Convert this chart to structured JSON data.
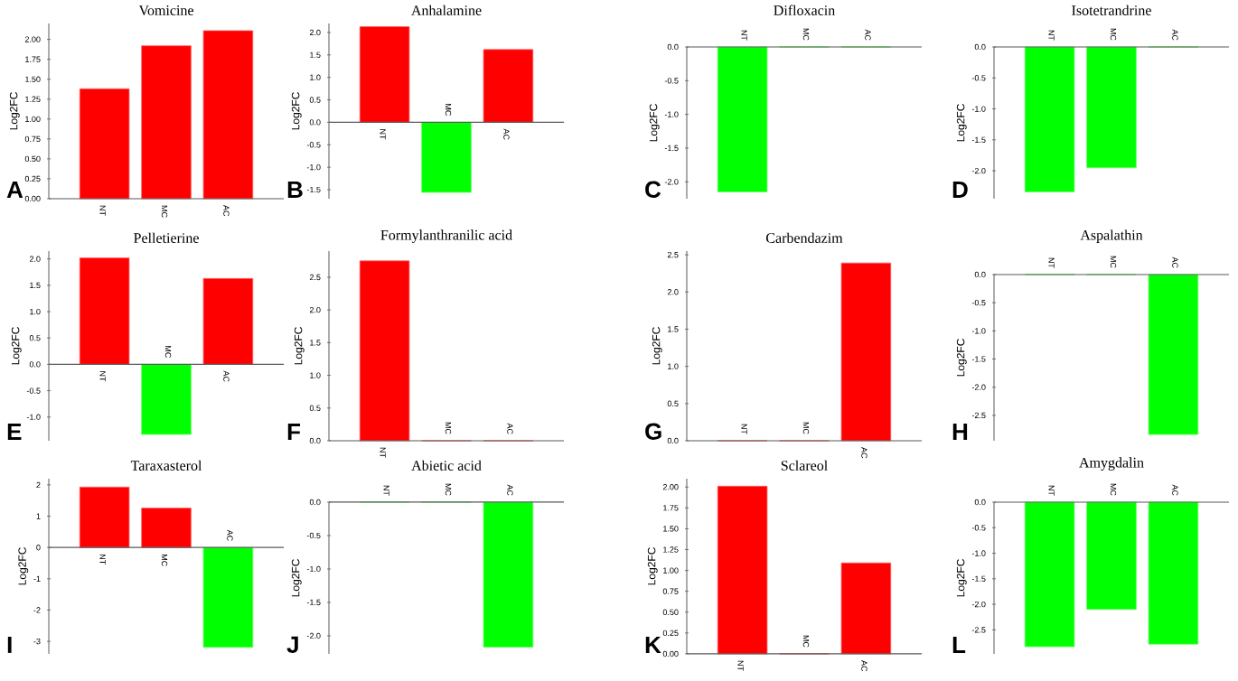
{
  "chart_data": [
    {
      "type": "bar",
      "title": "Vomicine",
      "ylabel": "Log2FC",
      "categories": [
        "NT",
        "MC",
        "AC"
      ],
      "values": [
        1.38,
        1.92,
        2.11
      ],
      "colors": [
        "#ff0000",
        "#ff0000",
        "#ff0000"
      ],
      "ylim": [
        0,
        2.2
      ],
      "yticks": [
        {
          "value": 0,
          "label": "0.00"
        },
        0.25,
        {
          "value": 0.5,
          "label": "0.50"
        },
        0.75,
        {
          "value": 1,
          "label": "1.00"
        },
        1.25,
        {
          "value": 1.5,
          "label": "1.50"
        },
        1.75,
        {
          "value": 2,
          "label": "2.00"
        }
      ],
      "annotations": [
        "A"
      ]
    },
    {
      "type": "bar",
      "title": "Anhalamine",
      "ylabel": "Log2FC",
      "categories": [
        "NT",
        "MC",
        "AC"
      ],
      "values": [
        2.13,
        -1.56,
        1.62
      ],
      "colors": [
        "#ff0000",
        "#00ff00",
        "#ff0000"
      ],
      "ylim": [
        -1.7,
        2.2
      ],
      "yticks": [
        -1.5,
        {
          "value": -1,
          "label": "-1.0"
        },
        -0.5,
        {
          "value": 0,
          "label": "0.0"
        },
        0.5,
        {
          "value": 1,
          "label": "1.0"
        },
        1.5,
        {
          "value": 2,
          "label": "2.0"
        }
      ],
      "annotations": [
        "B"
      ]
    },
    {
      "type": "bar",
      "title": "Difloxacin",
      "ylabel": "Log2FC",
      "categories": [
        "NT",
        "MC",
        "AC"
      ],
      "values": [
        -2.15,
        0,
        0
      ],
      "colors": [
        "#00ff00",
        "#00ff00",
        "#00ff00"
      ],
      "ylim": [
        -2.25,
        0
      ],
      "yticks": [
        {
          "value": -2,
          "label": "-2.0"
        },
        -1.5,
        {
          "value": -1,
          "label": "-1.0"
        },
        -0.5,
        {
          "value": 0,
          "label": "0.0"
        }
      ],
      "annotations": [
        "C"
      ]
    },
    {
      "type": "bar",
      "title": "Isotetrandrine",
      "ylabel": "Log2FC",
      "categories": [
        "NT",
        "MC",
        "AC"
      ],
      "values": [
        -2.34,
        -1.95,
        0
      ],
      "colors": [
        "#00ff00",
        "#00ff00",
        "#00ff00"
      ],
      "ylim": [
        -2.45,
        0
      ],
      "yticks": [
        {
          "value": -2,
          "label": "-2.0"
        },
        -1.5,
        {
          "value": -1,
          "label": "-1.0"
        },
        -0.5,
        {
          "value": 0,
          "label": "0.0"
        }
      ],
      "annotations": [
        "D"
      ]
    },
    {
      "type": "bar",
      "title": "Pelletierine",
      "ylabel": "Log2FC",
      "categories": [
        "NT",
        "MC",
        "AC"
      ],
      "values": [
        2.02,
        -1.33,
        1.63
      ],
      "colors": [
        "#ff0000",
        "#00ff00",
        "#ff0000"
      ],
      "ylim": [
        -1.45,
        2.15
      ],
      "yticks": [
        {
          "value": -1,
          "label": "-1.0"
        },
        -0.5,
        {
          "value": 0,
          "label": "0.0"
        },
        0.5,
        {
          "value": 1,
          "label": "1.0"
        },
        1.5,
        {
          "value": 2,
          "label": "2.0"
        }
      ],
      "annotations": [
        "E"
      ]
    },
    {
      "type": "bar",
      "title": "Formylanthranilic acid",
      "ylabel": "Log2FC",
      "categories": [
        "NT",
        "MC",
        "AC"
      ],
      "values": [
        2.75,
        0,
        0
      ],
      "colors": [
        "#ff0000",
        "#ff0000",
        "#ff0000"
      ],
      "ylim": [
        0,
        2.9
      ],
      "yticks": [
        {
          "value": 0,
          "label": "0.0"
        },
        0.5,
        {
          "value": 1,
          "label": "1.0"
        },
        1.5,
        {
          "value": 2,
          "label": "2.0"
        },
        2.5
      ],
      "annotations": [
        "F"
      ]
    },
    {
      "type": "bar",
      "title": "Carbendazim",
      "ylabel": "Log2FC",
      "categories": [
        "NT",
        "MC",
        "AC"
      ],
      "values": [
        0,
        0,
        2.39
      ],
      "colors": [
        "#ff0000",
        "#ff0000",
        "#ff0000"
      ],
      "ylim": [
        0,
        2.55
      ],
      "yticks": [
        {
          "value": 0,
          "label": "0.0"
        },
        0.5,
        {
          "value": 1,
          "label": "1.0"
        },
        1.5,
        {
          "value": 2,
          "label": "2.0"
        },
        2.5
      ],
      "annotations": [
        "G"
      ]
    },
    {
      "type": "bar",
      "title": "Aspalathin",
      "ylabel": "Log2FC",
      "categories": [
        "NT",
        "MC",
        "AC"
      ],
      "values": [
        0,
        0,
        -2.84
      ],
      "colors": [
        "#00ff00",
        "#00ff00",
        "#00ff00"
      ],
      "ylim": [
        -2.95,
        0
      ],
      "yticks": [
        -2.5,
        {
          "value": -2,
          "label": "-2.0"
        },
        -1.5,
        {
          "value": -1,
          "label": "-1.0"
        },
        -0.5,
        {
          "value": 0,
          "label": "0.0"
        }
      ],
      "annotations": [
        "H"
      ]
    },
    {
      "type": "bar",
      "title": "Taraxasterol",
      "ylabel": "Log2FC",
      "categories": [
        "NT",
        "MC",
        "AC"
      ],
      "values": [
        1.93,
        1.26,
        -3.19
      ],
      "colors": [
        "#ff0000",
        "#ff0000",
        "#00ff00"
      ],
      "ylim": [
        -3.4,
        2.2
      ],
      "yticks": [
        -3,
        -2,
        -1,
        0,
        1,
        2
      ],
      "annotations": [
        "I"
      ]
    },
    {
      "type": "bar",
      "title": "Abietic acid",
      "ylabel": "Log2FC",
      "categories": [
        "NT",
        "MC",
        "AC"
      ],
      "values": [
        0,
        0,
        -2.17
      ],
      "colors": [
        "#00ff00",
        "#00ff00",
        "#00ff00"
      ],
      "ylim": [
        -2.27,
        0
      ],
      "yticks": [
        {
          "value": -2,
          "label": "-2.0"
        },
        -1.5,
        {
          "value": -1,
          "label": "-1.0"
        },
        -0.5,
        {
          "value": 0,
          "label": "0.0"
        }
      ],
      "annotations": [
        "J"
      ]
    },
    {
      "type": "bar",
      "title": "Sclareol",
      "ylabel": "Log2FC",
      "categories": [
        "NT",
        "MC",
        "AC"
      ],
      "values": [
        2.01,
        0,
        1.09
      ],
      "colors": [
        "#ff0000",
        "#ff0000",
        "#ff0000"
      ],
      "ylim": [
        0,
        2.1
      ],
      "yticks": [
        {
          "value": 0,
          "label": "0.00"
        },
        0.25,
        {
          "value": 0.5,
          "label": "0.50"
        },
        0.75,
        {
          "value": 1,
          "label": "1.00"
        },
        1.25,
        {
          "value": 1.5,
          "label": "1.50"
        },
        1.75,
        {
          "value": 2,
          "label": "2.00"
        }
      ],
      "annotations": [
        "K"
      ]
    },
    {
      "type": "bar",
      "title": "Amygdalin",
      "ylabel": "Log2FC",
      "categories": [
        "NT",
        "MC",
        "AC"
      ],
      "values": [
        -2.83,
        -2.1,
        -2.78
      ],
      "colors": [
        "#00ff00",
        "#00ff00",
        "#00ff00"
      ],
      "ylim": [
        -2.97,
        0
      ],
      "yticks": [
        -2.5,
        {
          "value": -2,
          "label": "-2.0"
        },
        -1.5,
        {
          "value": -1,
          "label": "-1.0"
        },
        -0.5,
        {
          "value": 0,
          "label": "0.0"
        }
      ],
      "annotations": [
        "L"
      ]
    }
  ]
}
